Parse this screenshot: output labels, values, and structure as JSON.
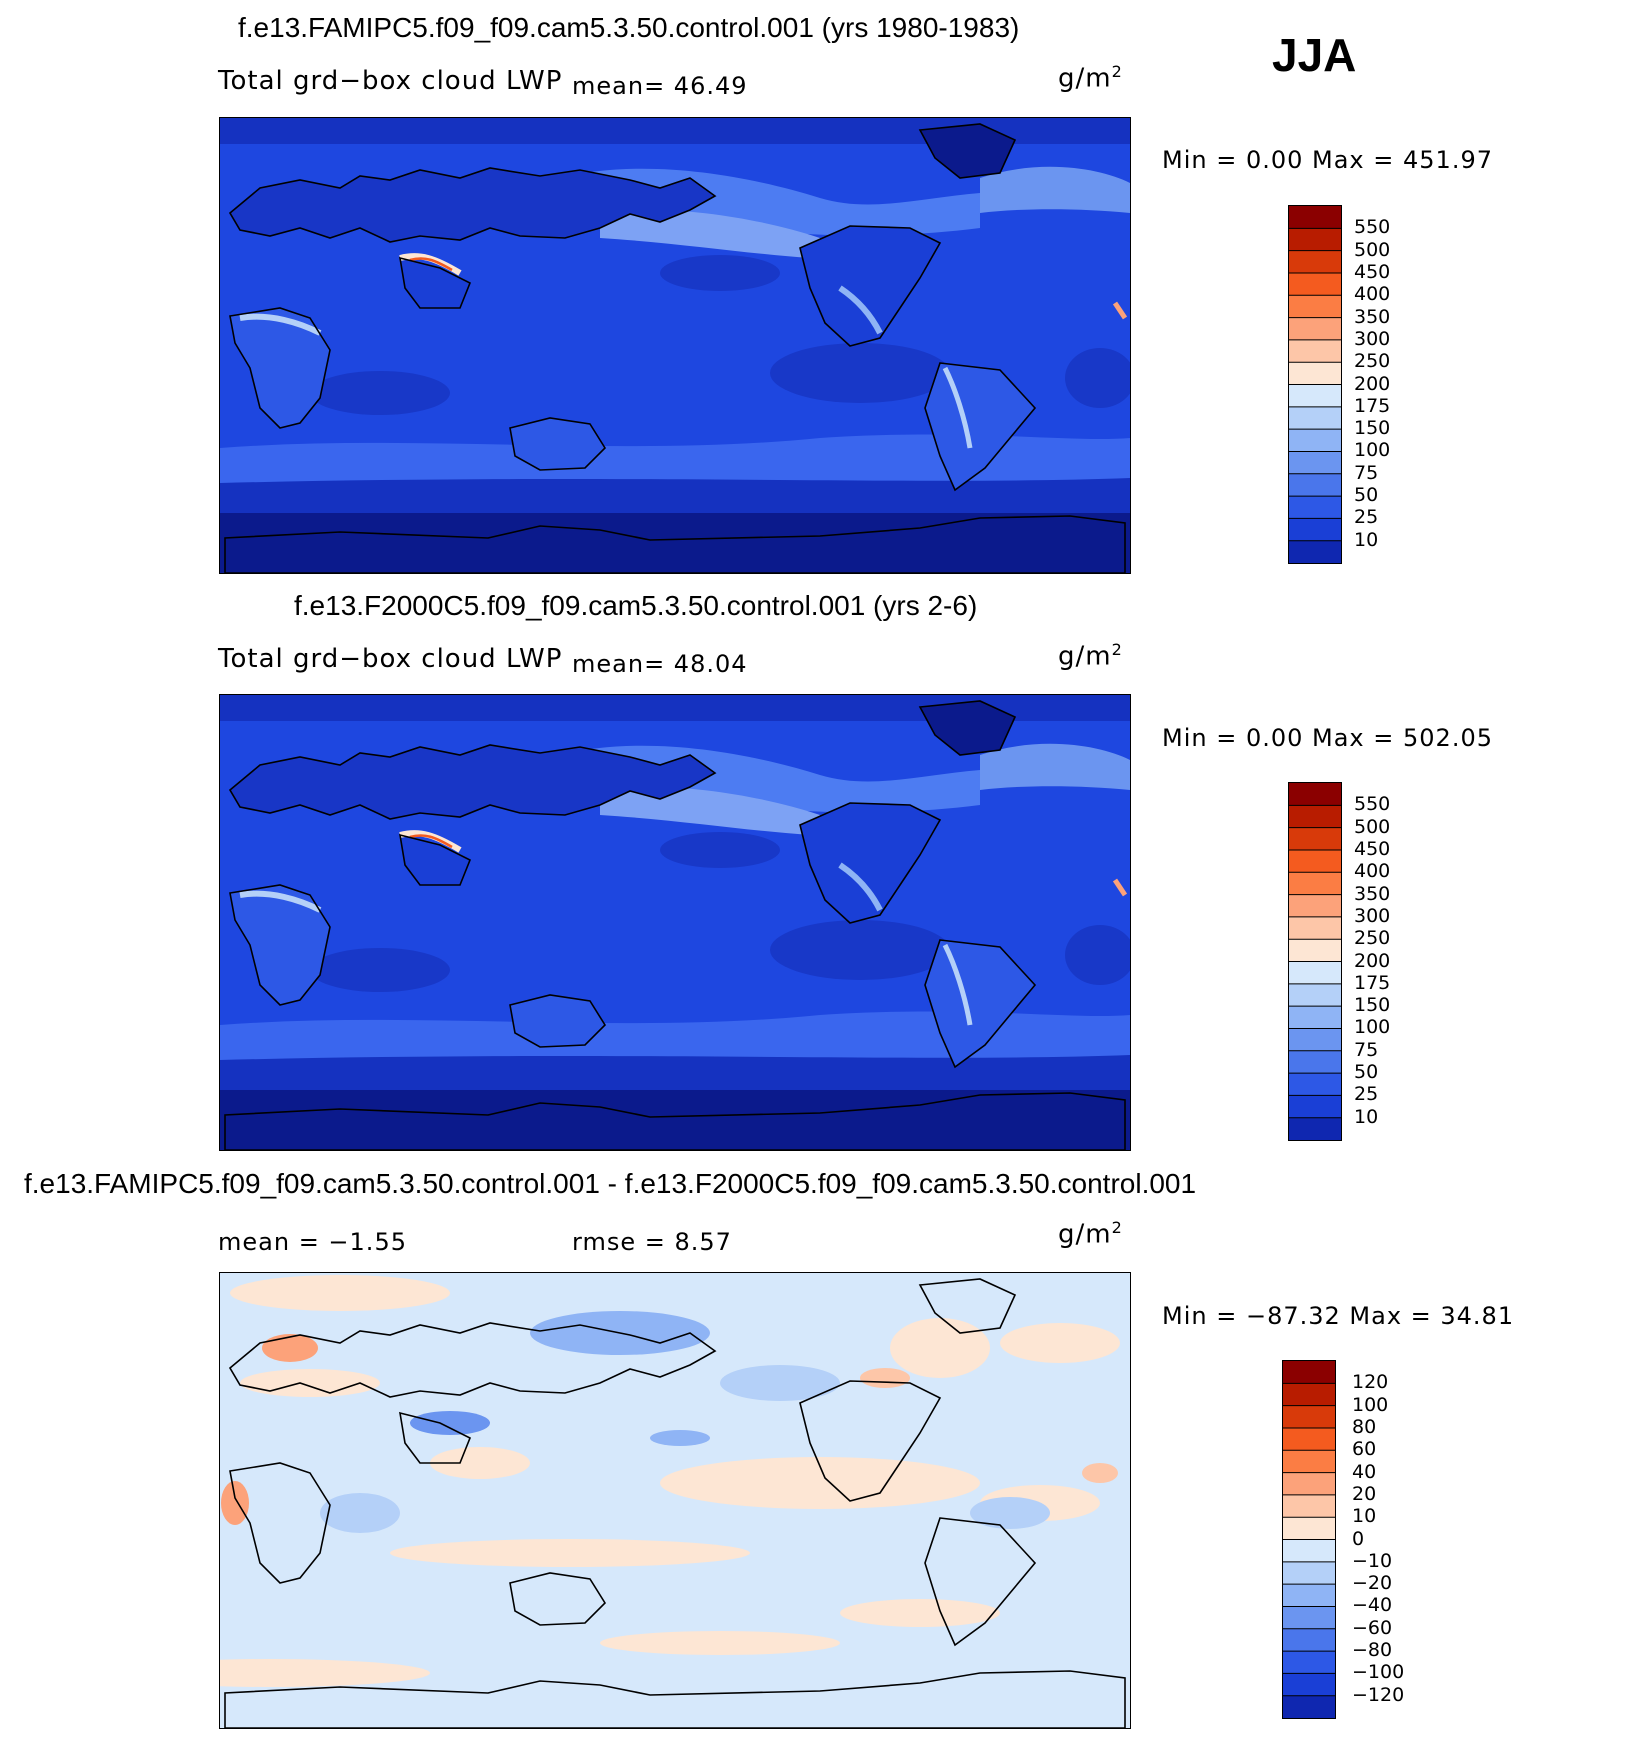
{
  "season_label": "JJA",
  "panels": [
    {
      "id": "panel1",
      "title": "f.e13.FAMIPC5.f09_f09.cam5.3.50.control.001 (yrs 1980-1983)",
      "variable": "Total grd−box cloud LWP",
      "mean_text": "mean=  46.49",
      "units": "g/m",
      "units_sup": "2",
      "minmax_text": "Min =    0.00 Max = 451.97",
      "map_type": "field"
    },
    {
      "id": "panel2",
      "title": "f.e13.F2000C5.f09_f09.cam5.3.50.control.001 (yrs 2-6)",
      "variable": "Total grd−box cloud LWP",
      "mean_text": "mean=  48.04",
      "units": "g/m",
      "units_sup": "2",
      "minmax_text": "Min =    0.00 Max = 502.05",
      "map_type": "field"
    },
    {
      "id": "panel3",
      "title": "f.e13.FAMIPC5.f09_f09.cam5.3.50.control.001 - f.e13.F2000C5.f09_f09.cam5.3.50.control.001",
      "mean_text": "mean =  −1.55",
      "rmse_text": "rmse =   8.57",
      "units": "g/m",
      "units_sup": "2",
      "minmax_text": "Min = −87.32 Max =   34.81",
      "map_type": "diff"
    }
  ],
  "chart_data": [
    {
      "type": "heatmap",
      "title": "f.e13.FAMIPC5.f09_f09.cam5.3.50.control.001 (yrs 1980-1983)",
      "variable": "Total grd−box cloud LWP",
      "units": "g/m2",
      "mean": 46.49,
      "min": 0.0,
      "max": 451.97,
      "colorbar_levels": [
        "550",
        "500",
        "450",
        "400",
        "350",
        "300",
        "250",
        "200",
        "175",
        "150",
        "100",
        "75",
        "50",
        "25",
        "10"
      ],
      "colorbar_colors": [
        "#8b0000",
        "#b81c00",
        "#d83a0a",
        "#f45b1f",
        "#fb7d44",
        "#fca27a",
        "#fdc6a8",
        "#fde6d4",
        "#d6e8fb",
        "#b4d0f8",
        "#8fb4f5",
        "#6b95f0",
        "#4a76eb",
        "#2d58e6",
        "#1a3fd6",
        "#0f27b0"
      ]
    },
    {
      "type": "heatmap",
      "title": "f.e13.F2000C5.f09_f09.cam5.3.50.control.001 (yrs 2-6)",
      "variable": "Total grd−box cloud LWP",
      "units": "g/m2",
      "mean": 48.04,
      "min": 0.0,
      "max": 502.05,
      "colorbar_levels": [
        "550",
        "500",
        "450",
        "400",
        "350",
        "300",
        "250",
        "200",
        "175",
        "150",
        "100",
        "75",
        "50",
        "25",
        "10"
      ],
      "colorbar_colors": [
        "#8b0000",
        "#b81c00",
        "#d83a0a",
        "#f45b1f",
        "#fb7d44",
        "#fca27a",
        "#fdc6a8",
        "#fde6d4",
        "#d6e8fb",
        "#b4d0f8",
        "#8fb4f5",
        "#6b95f0",
        "#4a76eb",
        "#2d58e6",
        "#1a3fd6",
        "#0f27b0"
      ]
    },
    {
      "type": "heatmap",
      "title": "f.e13.FAMIPC5.f09_f09.cam5.3.50.control.001 - f.e13.F2000C5.f09_f09.cam5.3.50.control.001",
      "units": "g/m2",
      "mean": -1.55,
      "rmse": 8.57,
      "min": -87.32,
      "max": 34.81,
      "colorbar_levels": [
        "120",
        "100",
        "80",
        "60",
        "40",
        "20",
        "10",
        "0",
        "−10",
        "−20",
        "−40",
        "−60",
        "−80",
        "−100",
        "−120"
      ],
      "colorbar_colors": [
        "#8b0000",
        "#b81c00",
        "#d83a0a",
        "#f45b1f",
        "#fb7d44",
        "#fca27a",
        "#fdc6a8",
        "#fde6d4",
        "#d6e8fb",
        "#b4d0f8",
        "#8fb4f5",
        "#6b95f0",
        "#4a76eb",
        "#2d58e6",
        "#1a3fd6",
        "#0f27b0"
      ]
    }
  ]
}
